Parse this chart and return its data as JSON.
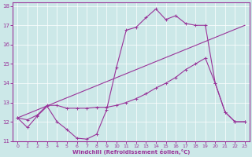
{
  "xlabel": "Windchill (Refroidissement éolien,°C)",
  "background_color": "#cce8e8",
  "grid_color": "#ffffff",
  "line_color": "#993399",
  "xlim": [
    -0.5,
    23.5
  ],
  "ylim": [
    11.0,
    18.2
  ],
  "xticks": [
    0,
    1,
    2,
    3,
    4,
    5,
    6,
    7,
    8,
    9,
    10,
    11,
    12,
    13,
    14,
    15,
    16,
    17,
    18,
    19,
    20,
    21,
    22,
    23
  ],
  "yticks": [
    11,
    12,
    13,
    14,
    15,
    16,
    17,
    18
  ],
  "line1_x": [
    0,
    1,
    2,
    3,
    4,
    5,
    6,
    7,
    8,
    9,
    10,
    11,
    12,
    13,
    14,
    15,
    16,
    17,
    18,
    19,
    20,
    21,
    22,
    23
  ],
  "line1_y": [
    12.2,
    11.7,
    12.3,
    12.8,
    12.0,
    11.6,
    11.15,
    11.1,
    11.35,
    12.6,
    14.8,
    16.75,
    16.9,
    17.4,
    17.85,
    17.3,
    17.5,
    17.1,
    17.0,
    17.0,
    14.0,
    12.5,
    12.0,
    12.0
  ],
  "line2_x": [
    0,
    23
  ],
  "line2_y": [
    12.2,
    17.0
  ],
  "line3_x": [
    0,
    1,
    2,
    3,
    4,
    5,
    6,
    7,
    8,
    9,
    10,
    11,
    12,
    13,
    14,
    15,
    16,
    17,
    18,
    19,
    20,
    21,
    22,
    23
  ],
  "line3_y": [
    12.2,
    12.1,
    12.35,
    12.85,
    12.85,
    12.7,
    12.7,
    12.7,
    12.75,
    12.75,
    12.85,
    13.0,
    13.2,
    13.45,
    13.75,
    14.0,
    14.3,
    14.7,
    15.0,
    15.3,
    14.0,
    12.5,
    12.0,
    12.0
  ]
}
